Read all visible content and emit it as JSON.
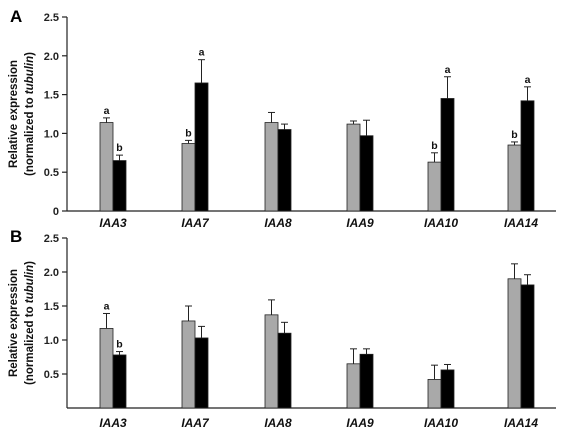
{
  "chart_data": [
    {
      "type": "bar",
      "panel_label": "A",
      "categories": [
        "IAA3",
        "IAA7",
        "IAA8",
        "IAA9",
        "IAA10",
        "IAA14"
      ],
      "ylabel_line1": "Relative expression",
      "ylabel_line2_prefix": "(normalized to ",
      "ylabel_line2_italic": "tubulin",
      "ylabel_line2_suffix": ")",
      "ylim": [
        0,
        2.5
      ],
      "yticks": [
        "0",
        "0.5",
        "1.0",
        "1.5",
        "2.0",
        "2.5"
      ],
      "series": [
        {
          "color": "#a9a9a9",
          "values": [
            1.14,
            0.87,
            1.14,
            1.12,
            0.63,
            0.85
          ],
          "errors": [
            0.06,
            0.04,
            0.13,
            0.04,
            0.12,
            0.04
          ],
          "labels": [
            "a",
            "b",
            "",
            "",
            "b",
            "b"
          ]
        },
        {
          "color": "#000000",
          "values": [
            0.65,
            1.65,
            1.05,
            0.97,
            1.45,
            1.42
          ],
          "errors": [
            0.07,
            0.3,
            0.07,
            0.2,
            0.28,
            0.18
          ],
          "labels": [
            "b",
            "a",
            "",
            "",
            "a",
            "a"
          ]
        }
      ]
    },
    {
      "type": "bar",
      "panel_label": "B",
      "categories": [
        "IAA3",
        "IAA7",
        "IAA8",
        "IAA9",
        "IAA10",
        "IAA14"
      ],
      "ylabel_line1": "Relative expression",
      "ylabel_line2_prefix": "(normalized to ",
      "ylabel_line2_italic": "tubulin",
      "ylabel_line2_suffix": ")",
      "ylim": [
        0,
        2.5
      ],
      "yticks": [
        "0.5",
        "1.0",
        "1.5",
        "2.0",
        "2.5"
      ],
      "series": [
        {
          "color": "#a9a9a9",
          "values": [
            1.17,
            1.28,
            1.37,
            0.65,
            0.42,
            1.9
          ],
          "errors": [
            0.22,
            0.22,
            0.22,
            0.22,
            0.21,
            0.22
          ],
          "labels": [
            "a",
            "",
            "",
            "",
            "",
            ""
          ]
        },
        {
          "color": "#000000",
          "values": [
            0.78,
            1.03,
            1.1,
            0.79,
            0.56,
            1.81
          ],
          "errors": [
            0.05,
            0.17,
            0.16,
            0.08,
            0.08,
            0.15
          ],
          "labels": [
            "b",
            "",
            "",
            "",
            "",
            ""
          ]
        }
      ]
    }
  ]
}
